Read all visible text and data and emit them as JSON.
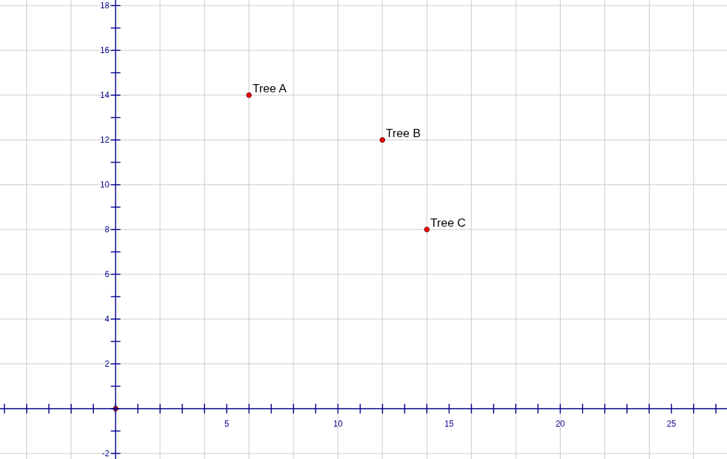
{
  "chart_data": {
    "type": "scatter",
    "x": [
      0,
      6,
      12,
      14
    ],
    "values": [
      0,
      14,
      12,
      8
    ],
    "color": "#ff0000",
    "marker": "circle",
    "xlim": [
      -5.2,
      27.5
    ],
    "ylim": [
      -2.25,
      18.25
    ],
    "xticks": [
      {
        "value": -5,
        "label": null
      },
      {
        "value": -4,
        "label": null
      },
      {
        "value": -3,
        "label": null
      },
      {
        "value": -2,
        "label": null
      },
      {
        "value": -1,
        "label": null
      },
      {
        "value": 0,
        "label": null
      },
      {
        "value": 1,
        "label": null
      },
      {
        "value": 2,
        "label": null
      },
      {
        "value": 3,
        "label": null
      },
      {
        "value": 4,
        "label": null
      },
      5,
      {
        "value": 6,
        "label": null
      },
      {
        "value": 7,
        "label": null
      },
      {
        "value": 8,
        "label": null
      },
      {
        "value": 9,
        "label": null
      },
      10,
      {
        "value": 11,
        "label": null
      },
      {
        "value": 12,
        "label": null
      },
      {
        "value": 13,
        "label": null
      },
      {
        "value": 14,
        "label": null
      },
      15,
      {
        "value": 16,
        "label": null
      },
      {
        "value": 17,
        "label": null
      },
      {
        "value": 18,
        "label": null
      },
      {
        "value": 19,
        "label": null
      },
      20,
      {
        "value": 21,
        "label": null
      },
      {
        "value": 22,
        "label": null
      },
      {
        "value": 23,
        "label": null
      },
      {
        "value": 24,
        "label": null
      },
      25,
      {
        "value": 26,
        "label": null
      },
      {
        "value": 27,
        "label": null
      }
    ],
    "yticks": [
      -2,
      {
        "value": -1,
        "label": null
      },
      {
        "value": 0,
        "label": null
      },
      {
        "value": 1,
        "label": null
      },
      2,
      {
        "value": 3,
        "label": null
      },
      4,
      {
        "value": 5,
        "label": null
      },
      6,
      {
        "value": 7,
        "label": null
      },
      8,
      {
        "value": 9,
        "label": null
      },
      10,
      {
        "value": 11,
        "label": null
      },
      12,
      {
        "value": 13,
        "label": null
      },
      14,
      {
        "value": 15,
        "label": null
      },
      16,
      {
        "value": 17,
        "label": null
      },
      18
    ],
    "grid": true,
    "annotations": [
      {
        "text": "Tree A",
        "x": 6,
        "y": 14
      },
      {
        "text": "Tree B",
        "x": 12,
        "y": 12
      },
      {
        "text": "Tree C",
        "x": 14,
        "y": 8
      }
    ]
  }
}
